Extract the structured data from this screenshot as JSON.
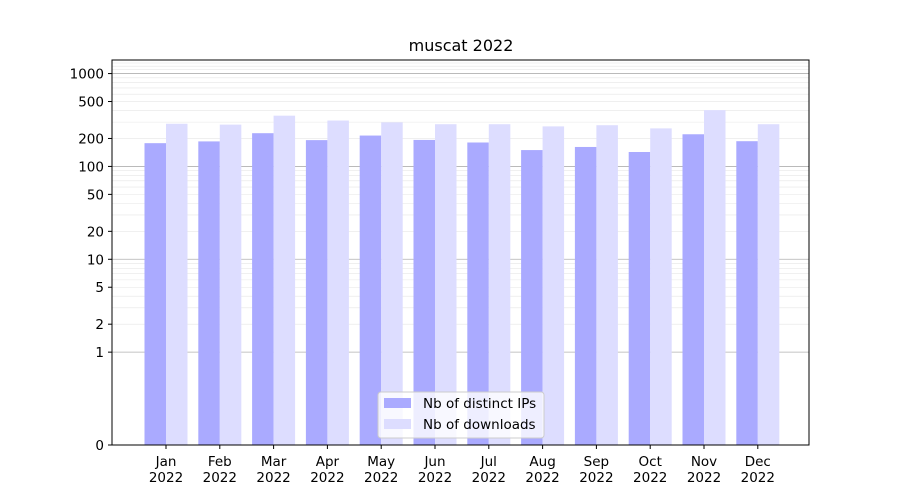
{
  "chart_data": {
    "type": "bar",
    "title": "muscat 2022",
    "xlabel": "",
    "ylabel": "",
    "scale": "symlog",
    "ylim": [
      0,
      1400
    ],
    "yticks": [
      0,
      1,
      2,
      5,
      10,
      20,
      50,
      100,
      200,
      500,
      1000
    ],
    "categories": [
      {
        "month": "Jan",
        "year": "2022"
      },
      {
        "month": "Feb",
        "year": "2022"
      },
      {
        "month": "Mar",
        "year": "2022"
      },
      {
        "month": "Apr",
        "year": "2022"
      },
      {
        "month": "May",
        "year": "2022"
      },
      {
        "month": "Jun",
        "year": "2022"
      },
      {
        "month": "Jul",
        "year": "2022"
      },
      {
        "month": "Aug",
        "year": "2022"
      },
      {
        "month": "Sep",
        "year": "2022"
      },
      {
        "month": "Oct",
        "year": "2022"
      },
      {
        "month": "Nov",
        "year": "2022"
      },
      {
        "month": "Dec",
        "year": "2022"
      }
    ],
    "series": [
      {
        "name": "Nb of distinct IPs",
        "color": "#aaaaff",
        "values": [
          178,
          186,
          228,
          192,
          215,
          193,
          181,
          150,
          162,
          143,
          222,
          187
        ]
      },
      {
        "name": "Nb of downloads",
        "color": "#ddddff",
        "values": [
          288,
          282,
          352,
          312,
          298,
          285,
          285,
          270,
          278,
          257,
          404,
          285
        ]
      }
    ],
    "legend": "lower-center",
    "grid": true
  }
}
